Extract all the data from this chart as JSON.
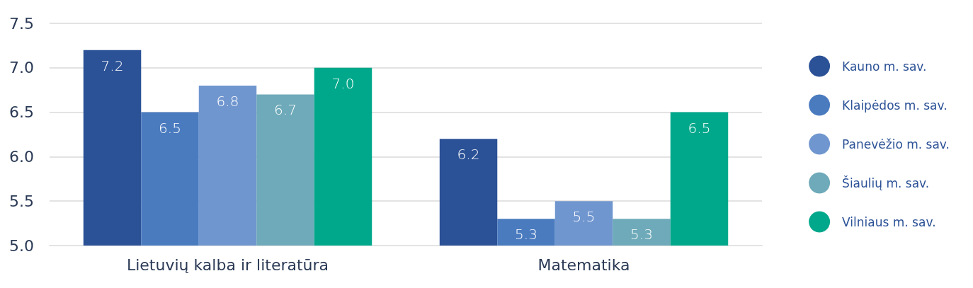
{
  "chart_data": {
    "type": "bar",
    "categories": [
      "Lietuvių kalba ir literatūra",
      "Matematika"
    ],
    "series": [
      {
        "name": "Kauno m. sav.",
        "color": "#2b5196",
        "values": [
          7.2,
          6.2
        ],
        "value_labels": [
          "7.2",
          "6.2"
        ]
      },
      {
        "name": "Klaipėdos m. sav.",
        "color": "#4a7bbf",
        "values": [
          6.5,
          5.3
        ],
        "value_labels": [
          "6.5",
          "5.3"
        ]
      },
      {
        "name": "Panevėžio m. sav.",
        "color": "#7096cf",
        "values": [
          6.8,
          5.5
        ],
        "value_labels": [
          "6.8",
          "5.5"
        ]
      },
      {
        "name": "Šiaulių m. sav.",
        "color": "#6eaab9",
        "values": [
          6.7,
          5.3
        ],
        "value_labels": [
          "6.7",
          "5.3"
        ]
      },
      {
        "name": "Vilniaus m. sav.",
        "color": "#00a88b",
        "values": [
          7.0,
          6.5
        ],
        "value_labels": [
          "7.0",
          "6.5"
        ]
      }
    ],
    "ylim": [
      5.0,
      7.5
    ],
    "yticks": [
      {
        "value": 5,
        "label": "5.0"
      },
      5.5,
      {
        "value": 6,
        "label": "6.0"
      },
      6.5,
      {
        "value": 7,
        "label": "7.0"
      },
      7.5
    ],
    "grid": "y",
    "legend": "right"
  }
}
